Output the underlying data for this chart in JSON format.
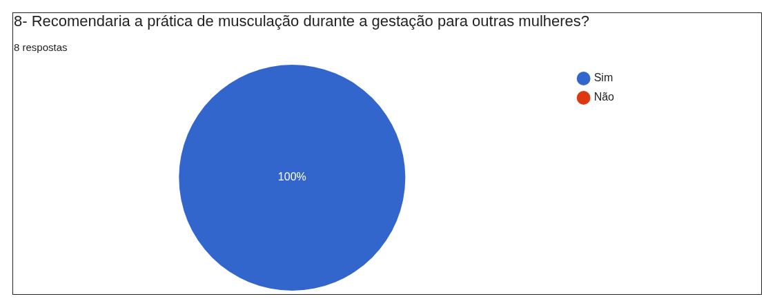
{
  "chart_data": {
    "type": "pie",
    "title": "8- Recomendaria a prática de musculação durante a gestação para outras mulheres?",
    "subtitle": "8 respostas",
    "categories": [
      "Sim",
      "Não"
    ],
    "values": [
      100,
      0
    ],
    "colors": [
      "#3366cc",
      "#dc3912"
    ],
    "value_labels": [
      "100%",
      null
    ],
    "legend": "right"
  }
}
